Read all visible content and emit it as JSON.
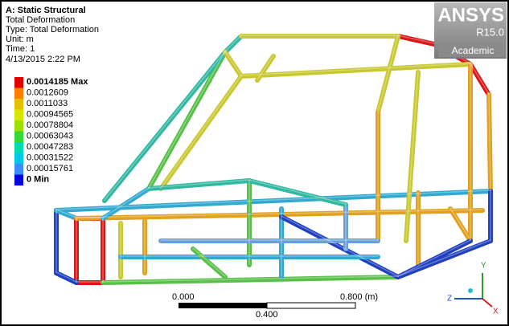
{
  "header": {
    "analysis": "A: Static Structural",
    "result": "Total Deformation",
    "type": "Type: Total Deformation",
    "unit": "Unit: m",
    "time": "Time: 1",
    "date": "4/13/2015 2:22 PM"
  },
  "legend": [
    "0.0014185 Max",
    "0.0012609",
    "0.0011033",
    "0.00094565",
    "0.00078804",
    "0.00063043",
    "0.00047283",
    "0.00031522",
    "0.00015761",
    "0 Min"
  ],
  "logo": {
    "brand": "ANSYS",
    "release": "R15.0",
    "edition": "Academic"
  },
  "scale_bar": {
    "start": "0.000",
    "end": "0.800 (m)",
    "middle": "0.400"
  },
  "triad": {
    "x": "X",
    "y": "Y",
    "z": "Z"
  }
}
